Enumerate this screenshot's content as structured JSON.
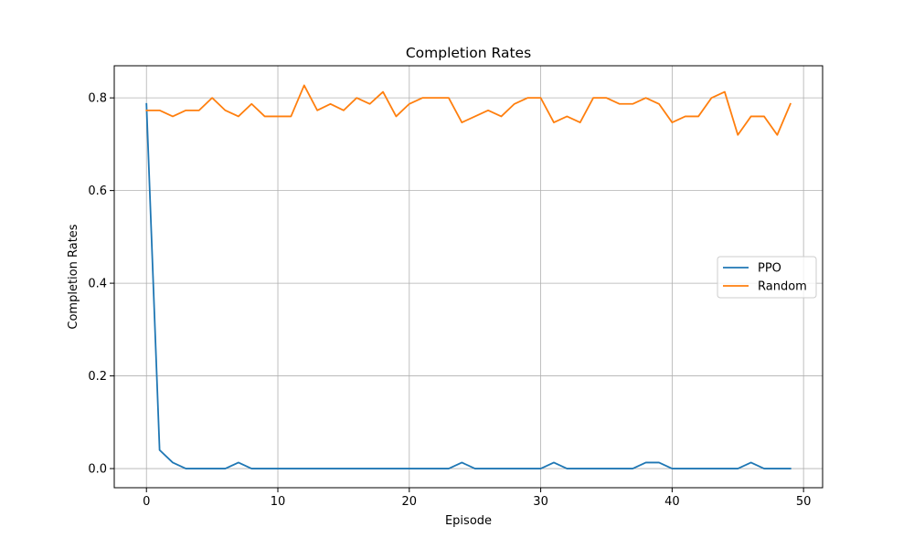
{
  "chart_data": {
    "type": "line",
    "title": "Completion Rates",
    "xlabel": "Episode",
    "ylabel": "Completion Rates",
    "xlim": [
      -2.45,
      51.45
    ],
    "ylim": [
      -0.0413,
      0.8693
    ],
    "xticks": [
      0,
      10,
      20,
      30,
      40,
      50
    ],
    "yticks": [
      0.0,
      0.2,
      0.4,
      0.6,
      0.8
    ],
    "grid": true,
    "legend_position": "center-right",
    "x": [
      0,
      1,
      2,
      3,
      4,
      5,
      6,
      7,
      8,
      9,
      10,
      11,
      12,
      13,
      14,
      15,
      16,
      17,
      18,
      19,
      20,
      21,
      22,
      23,
      24,
      25,
      26,
      27,
      28,
      29,
      30,
      31,
      32,
      33,
      34,
      35,
      36,
      37,
      38,
      39,
      40,
      41,
      42,
      43,
      44,
      45,
      46,
      47,
      48,
      49
    ],
    "series": [
      {
        "name": "PPO",
        "color": "#1f77b4",
        "values": [
          0.787,
          0.04,
          0.013,
          0,
          0,
          0,
          0,
          0.013,
          0,
          0,
          0,
          0,
          0,
          0,
          0,
          0,
          0,
          0,
          0,
          0,
          0,
          0,
          0,
          0,
          0.013,
          0,
          0,
          0,
          0,
          0,
          0,
          0.013,
          0,
          0,
          0,
          0,
          0,
          0,
          0.013,
          0.013,
          0,
          0,
          0,
          0,
          0,
          0,
          0.013,
          0,
          0,
          0
        ]
      },
      {
        "name": "Random",
        "color": "#ff7f0e",
        "values": [
          0.773,
          0.773,
          0.76,
          0.773,
          0.773,
          0.8,
          0.773,
          0.76,
          0.787,
          0.76,
          0.76,
          0.76,
          0.827,
          0.773,
          0.787,
          0.773,
          0.8,
          0.787,
          0.813,
          0.76,
          0.787,
          0.8,
          0.8,
          0.8,
          0.747,
          0.76,
          0.773,
          0.76,
          0.787,
          0.8,
          0.8,
          0.747,
          0.76,
          0.747,
          0.8,
          0.8,
          0.787,
          0.787,
          0.8,
          0.787,
          0.747,
          0.76,
          0.76,
          0.8,
          0.813,
          0.72,
          0.76,
          0.76,
          0.72,
          0.787
        ]
      }
    ]
  }
}
